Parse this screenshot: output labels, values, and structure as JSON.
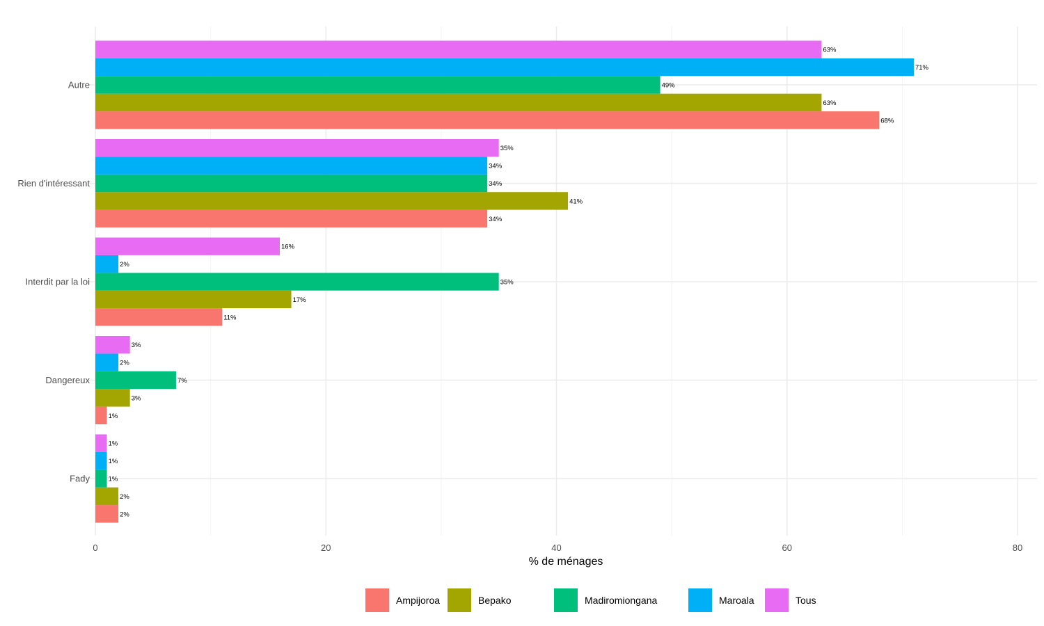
{
  "chart_data": {
    "type": "bar",
    "orientation": "horizontal",
    "title": "",
    "xlabel": "% de ménages",
    "ylabel": "",
    "xlim": [
      0,
      80
    ],
    "xticks": [
      0,
      20,
      40,
      60,
      80
    ],
    "grid": true,
    "legend_position": "bottom",
    "categories": [
      "Autre",
      "Rien d'intéressant",
      "Interdit par la loi",
      "Dangereux",
      "Fady"
    ],
    "series": [
      {
        "name": "Ampijoroa",
        "color": "#F8766D",
        "values": [
          68,
          34,
          11,
          1,
          2
        ],
        "labels": [
          "68%",
          "34%",
          "11%",
          "1%",
          "2%"
        ]
      },
      {
        "name": "Bepako",
        "color": "#A3A500",
        "values": [
          63,
          41,
          17,
          3,
          2
        ],
        "labels": [
          "63%",
          "41%",
          "17%",
          "3%",
          "2%"
        ]
      },
      {
        "name": "Madiromiongana",
        "color": "#00BF7D",
        "values": [
          49,
          34,
          35,
          7,
          1
        ],
        "labels": [
          "49%",
          "34%",
          "35%",
          "7%",
          "1%"
        ]
      },
      {
        "name": "Maroala",
        "color": "#00B0F6",
        "values": [
          71,
          34,
          2,
          2,
          1
        ],
        "labels": [
          "71%",
          "34%",
          "2%",
          "2%",
          "1%"
        ]
      },
      {
        "name": "Tous",
        "color": "#E76BF3",
        "values": [
          63,
          35,
          16,
          3,
          1
        ],
        "labels": [
          "63%",
          "35%",
          "16%",
          "3%",
          "1%"
        ]
      }
    ]
  }
}
